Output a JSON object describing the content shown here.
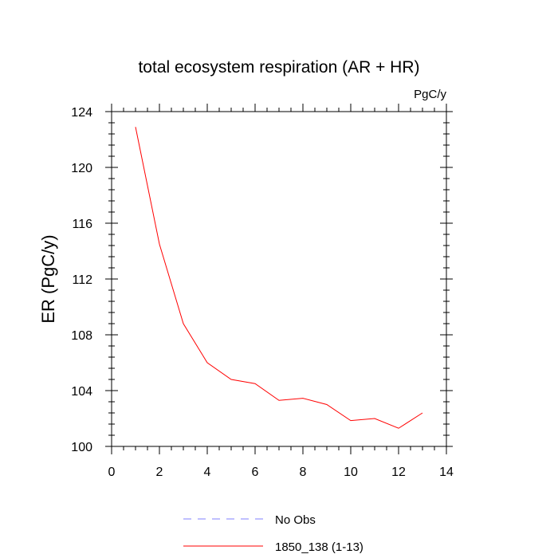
{
  "chart_data": {
    "type": "line",
    "title": "total ecosystem respiration (AR + HR)",
    "units_label": "PgC/y",
    "xlabel": "",
    "ylabel": "ER  (PgC/y)",
    "xlim": [
      0,
      14
    ],
    "ylim": [
      100,
      124
    ],
    "x_ticks": [
      0,
      2,
      4,
      6,
      8,
      10,
      12,
      14
    ],
    "y_ticks": [
      100,
      104,
      108,
      112,
      116,
      120,
      124
    ],
    "series": [
      {
        "name": "1850_138 (1-13)",
        "color": "#ff0000",
        "dash": "solid",
        "x": [
          1,
          2,
          3,
          4,
          5,
          6,
          7,
          8,
          9,
          10,
          11,
          12,
          13
        ],
        "values": [
          122.9,
          114.5,
          108.8,
          106.0,
          104.8,
          104.5,
          103.3,
          103.45,
          103.0,
          101.85,
          102.0,
          101.3,
          102.4
        ]
      }
    ],
    "legend": [
      {
        "label": "No Obs",
        "color": "#8080ff",
        "dash": "dashed"
      },
      {
        "label": "1850_138 (1-13)",
        "color": "#ff0000",
        "dash": "solid"
      }
    ]
  }
}
